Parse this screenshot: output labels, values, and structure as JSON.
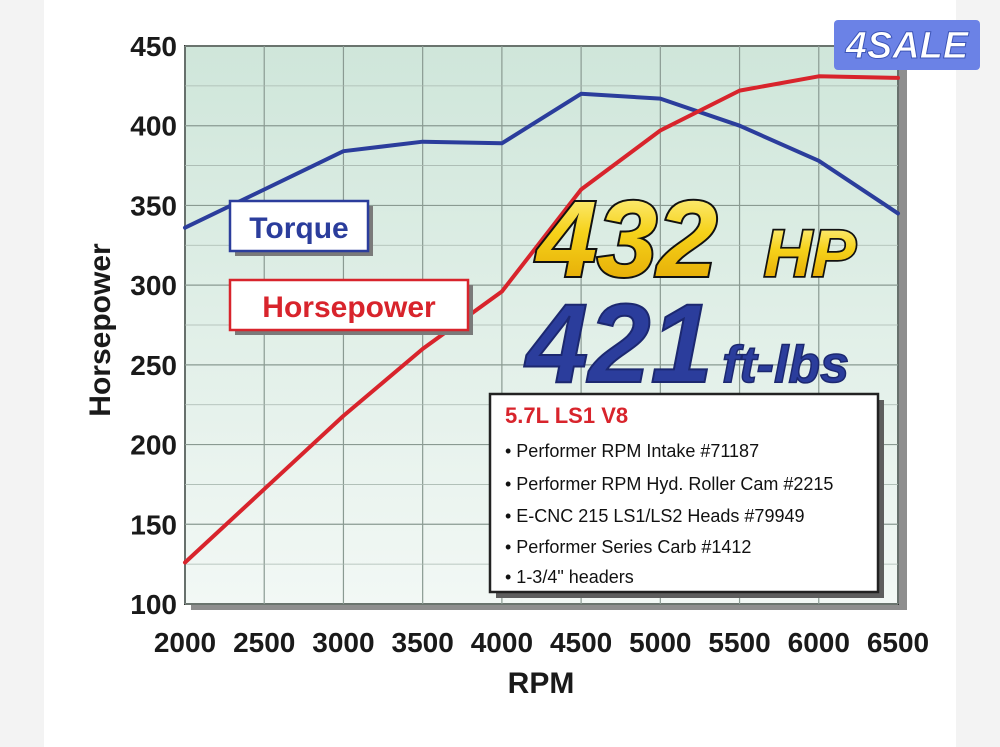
{
  "badge": {
    "label": "4SALE",
    "color": "#6b82e6"
  },
  "chart_data": {
    "type": "line",
    "xlabel": "RPM",
    "ylabel": "Horsepower",
    "xlim": [
      2000,
      6500
    ],
    "ylim": [
      100,
      450
    ],
    "x_ticks": [
      2000,
      2500,
      3000,
      3500,
      4000,
      4500,
      5000,
      5500,
      6000,
      6500
    ],
    "y_ticks": [
      100,
      150,
      200,
      250,
      300,
      350,
      400,
      450
    ],
    "grid": true,
    "series": [
      {
        "name": "Torque",
        "color": "#2b3d9c",
        "x": [
          2000,
          2500,
          3000,
          3500,
          4000,
          4500,
          5000,
          5500,
          6000,
          6500
        ],
        "values": [
          336,
          360,
          384,
          390,
          389,
          420,
          417,
          400,
          378,
          345
        ]
      },
      {
        "name": "Horsepower",
        "color": "#d8242c",
        "x": [
          2000,
          2500,
          3000,
          3500,
          4000,
          4500,
          5000,
          5500,
          6000,
          6500
        ],
        "values": [
          126,
          172,
          218,
          260,
          296,
          360,
          397,
          422,
          431,
          430
        ]
      }
    ],
    "annotations": {
      "peak_hp_value": "432",
      "peak_hp_unit": "HP",
      "peak_torque_value": "421",
      "peak_torque_unit": "ft-lbs"
    },
    "specs": {
      "title": "5.7L LS1 V8",
      "items": [
        "• Performer RPM Intake #71187",
        "• Performer RPM Hyd. Roller Cam #2215",
        "• E-CNC 215 LS1/LS2 Heads #79949",
        "• Performer Series Carb #1412",
        "•  1-3/4\" headers"
      ]
    }
  }
}
